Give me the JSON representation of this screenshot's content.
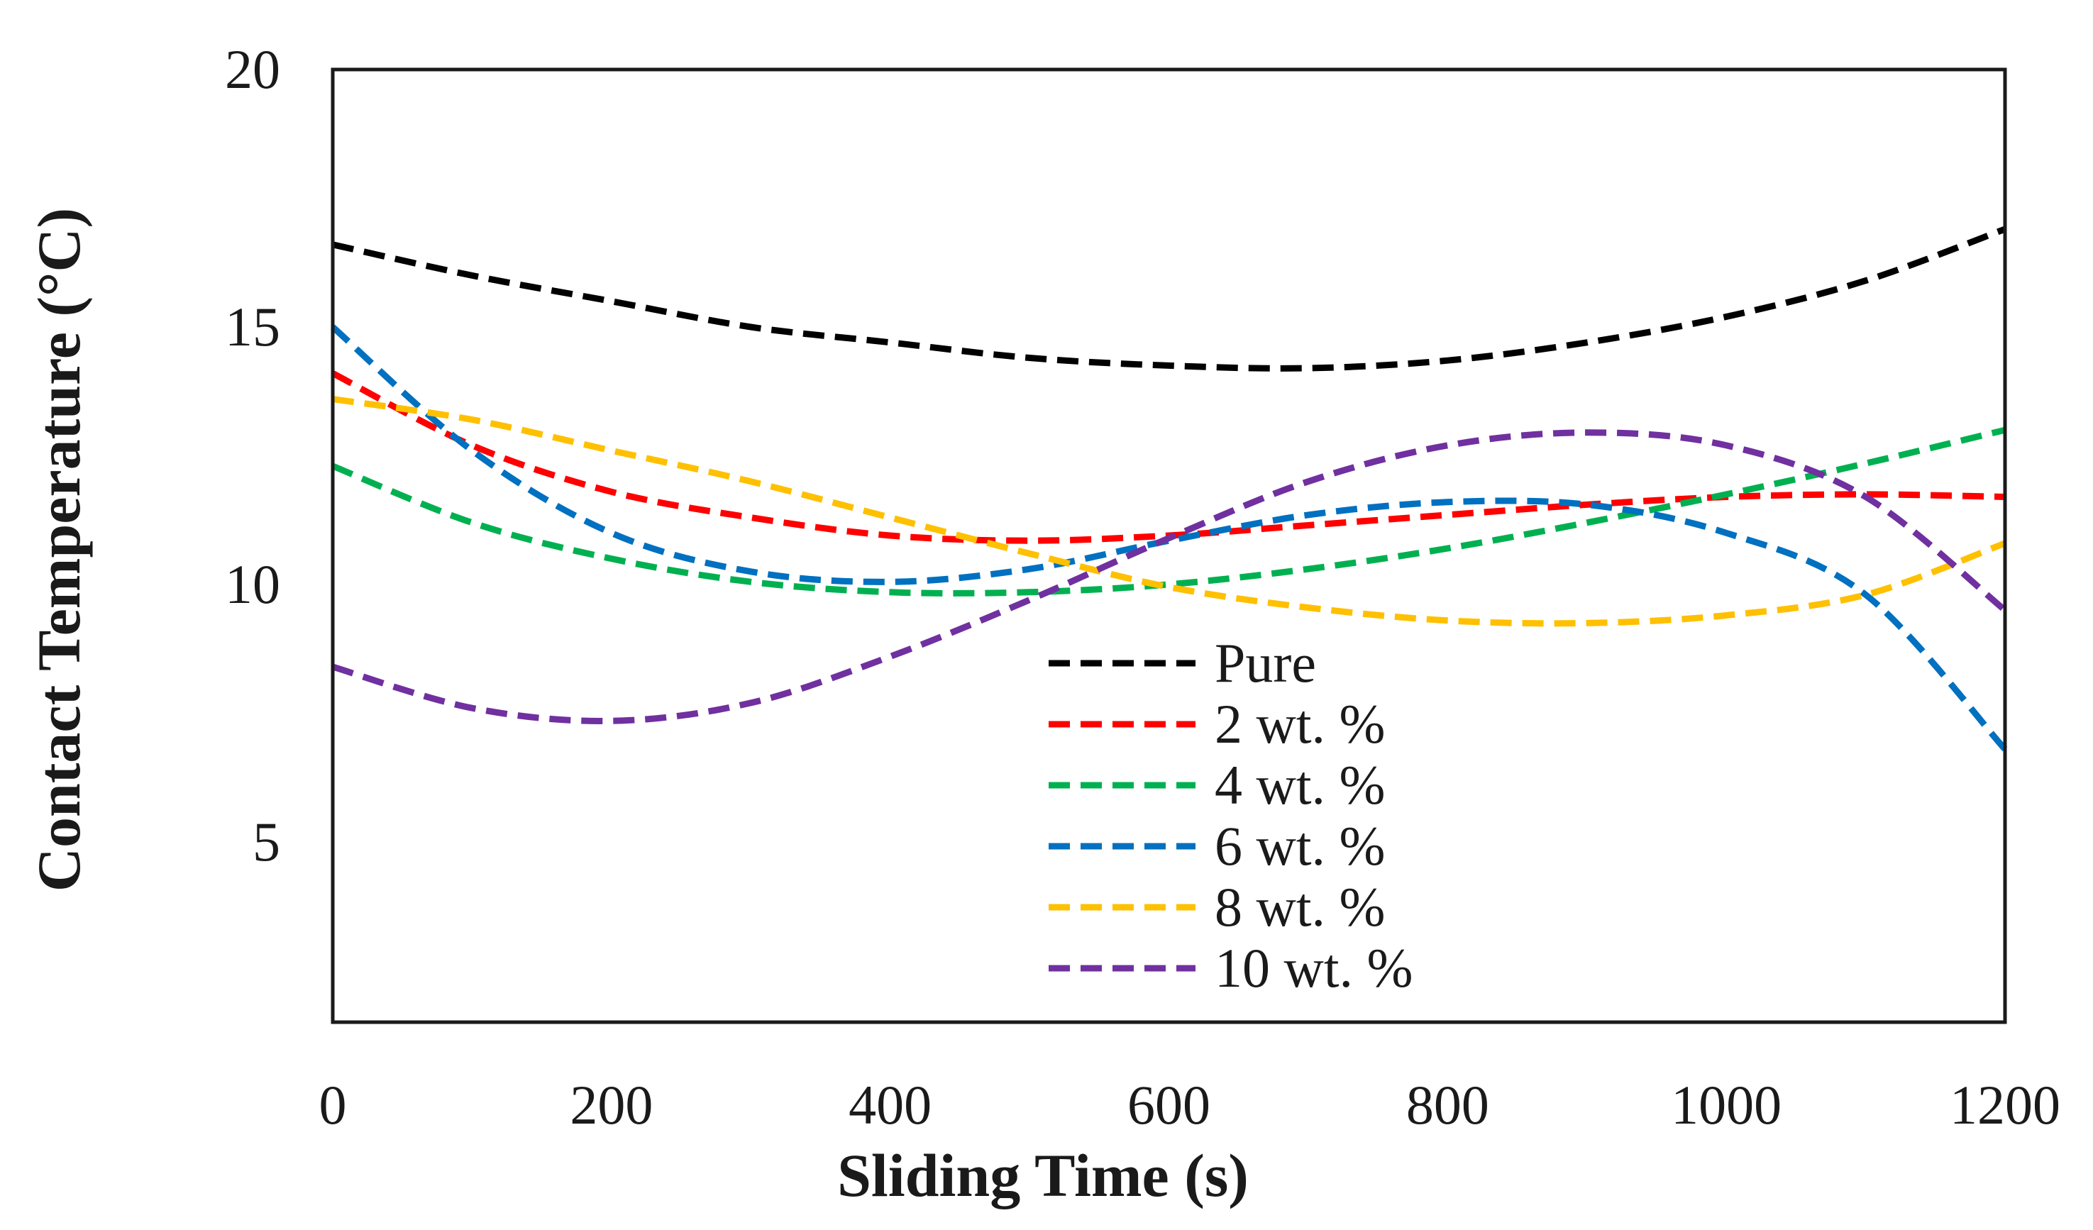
{
  "chart_data": {
    "type": "line",
    "title": "",
    "xlabel": "Sliding Time (s)",
    "ylabel": "Contact Temperature (°C)",
    "xlim": [
      0,
      1200
    ],
    "ylim": [
      1.5,
      20
    ],
    "x_ticks": [
      0,
      200,
      400,
      600,
      800,
      1000,
      1200
    ],
    "y_ticks": [
      5,
      10,
      15,
      20
    ],
    "grid": false,
    "legend_position": "bottom-center",
    "x": [
      0,
      100,
      200,
      300,
      400,
      500,
      600,
      700,
      800,
      900,
      1000,
      1100,
      1200
    ],
    "series": [
      {
        "name": "Pure",
        "color": "#000000",
        "values": [
          16.6,
          16.0,
          15.5,
          15.0,
          14.7,
          14.4,
          14.25,
          14.2,
          14.35,
          14.7,
          15.2,
          15.9,
          16.9
        ]
      },
      {
        "name": "2 wt. %",
        "color": "#ff0000",
        "values": [
          14.1,
          12.7,
          11.8,
          11.3,
          10.95,
          10.85,
          10.95,
          11.15,
          11.35,
          11.55,
          11.7,
          11.75,
          11.7
        ]
      },
      {
        "name": "4 wt. %",
        "color": "#00b050",
        "values": [
          12.3,
          11.2,
          10.5,
          10.05,
          9.85,
          9.85,
          10.0,
          10.3,
          10.7,
          11.2,
          11.75,
          12.35,
          13.0
        ]
      },
      {
        "name": "6 wt. %",
        "color": "#0070c0",
        "values": [
          15.0,
          12.6,
          11.0,
          10.25,
          10.05,
          10.3,
          10.85,
          11.35,
          11.6,
          11.55,
          11.0,
          9.8,
          6.8
        ]
      },
      {
        "name": "8 wt. %",
        "color": "#ffc000",
        "values": [
          13.6,
          13.2,
          12.6,
          12.0,
          11.3,
          10.6,
          9.95,
          9.55,
          9.3,
          9.25,
          9.4,
          9.8,
          10.8
        ]
      },
      {
        "name": "10 wt. %",
        "color": "#7030a0",
        "values": [
          8.4,
          7.6,
          7.35,
          7.7,
          8.6,
          9.7,
          10.9,
          12.0,
          12.7,
          12.95,
          12.7,
          11.7,
          9.5
        ]
      }
    ]
  }
}
